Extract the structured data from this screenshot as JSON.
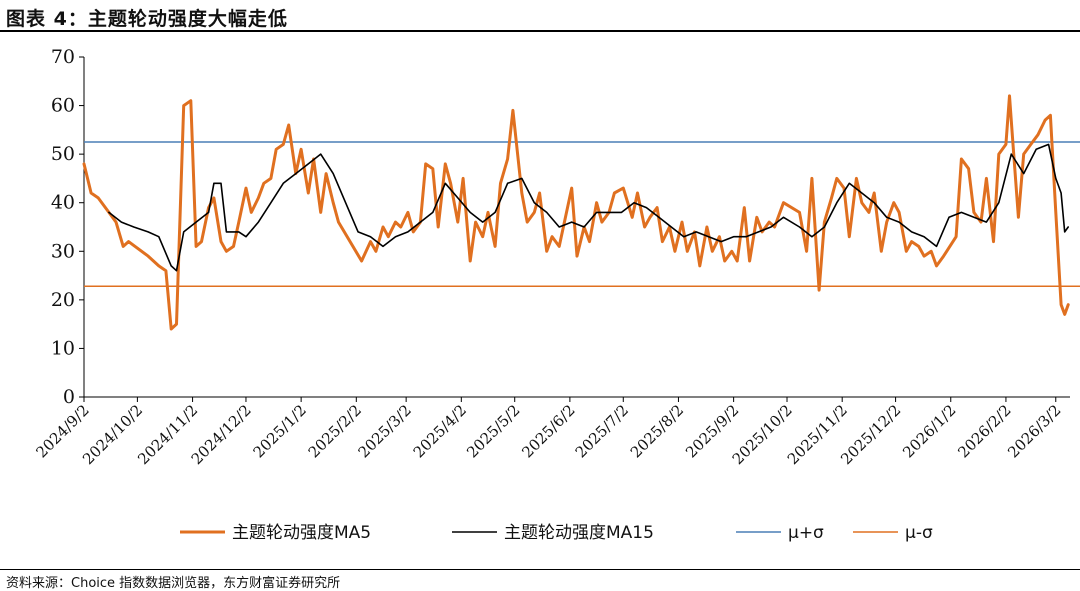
{
  "title": "图表 4：主题轮动强度大幅走低",
  "source": "资料来源：Choice 指数数据浏览器，东方财富证券研究所",
  "chart_data": {
    "type": "line",
    "title": "图表 4：主题轮动强度大幅走低",
    "xlabel": "",
    "ylabel": "",
    "ylim": [
      0,
      70
    ],
    "yticks": [
      0,
      10,
      20,
      30,
      40,
      50,
      60,
      70
    ],
    "x_tick_labels": [
      "2024/9/2",
      "2024/10/2",
      "2024/11/2",
      "2024/12/2",
      "2025/1/2",
      "2025/2/2",
      "2025/3/2",
      "2025/4/2",
      "2025/5/2",
      "2025/6/2",
      "2025/7/2",
      "2025/8/2",
      "2025/9/2",
      "2025/10/2",
      "2025/11/2",
      "2025/12/2",
      "2026/1/2",
      "2026/2/2",
      "2026/3/2"
    ],
    "x_range": [
      "2024/9/2",
      "2026/3/10"
    ],
    "grid": false,
    "legend_position": "bottom",
    "series": [
      {
        "name": "主题轮动强度MA5",
        "color": "#E07020",
        "points": [
          [
            "2024/9/2",
            48
          ],
          [
            "2024/9/6",
            42
          ],
          [
            "2024/9/10",
            41
          ],
          [
            "2024/9/16",
            38
          ],
          [
            "2024/9/20",
            36
          ],
          [
            "2024/9/24",
            31
          ],
          [
            "2024/9/27",
            32
          ],
          [
            "2024/10/8",
            29
          ],
          [
            "2024/10/14",
            27
          ],
          [
            "2024/10/18",
            26
          ],
          [
            "2024/10/21",
            14
          ],
          [
            "2024/10/24",
            15
          ],
          [
            "2024/10/28",
            60
          ],
          [
            "2024/11/1",
            61
          ],
          [
            "2024/11/4",
            31
          ],
          [
            "2024/11/7",
            32
          ],
          [
            "2024/11/11",
            39
          ],
          [
            "2024/11/14",
            41
          ],
          [
            "2024/11/18",
            32
          ],
          [
            "2024/11/21",
            30
          ],
          [
            "2024/11/25",
            31
          ],
          [
            "2024/11/28",
            36
          ],
          [
            "2024/12/2",
            43
          ],
          [
            "2024/12/5",
            38
          ],
          [
            "2024/12/9",
            41
          ],
          [
            "2024/12/12",
            44
          ],
          [
            "2024/12/16",
            45
          ],
          [
            "2024/12/19",
            51
          ],
          [
            "2024/12/23",
            52
          ],
          [
            "2024/12/26",
            56
          ],
          [
            "2024/12/30",
            46
          ],
          [
            "2025/1/2",
            51
          ],
          [
            "2025/1/6",
            42
          ],
          [
            "2025/1/9",
            49
          ],
          [
            "2025/1/13",
            38
          ],
          [
            "2025/1/16",
            46
          ],
          [
            "2025/1/20",
            40
          ],
          [
            "2025/1/23",
            36
          ],
          [
            "2025/2/5",
            28
          ],
          [
            "2025/2/10",
            32
          ],
          [
            "2025/2/13",
            30
          ],
          [
            "2025/2/17",
            35
          ],
          [
            "2025/2/20",
            33
          ],
          [
            "2025/2/24",
            36
          ],
          [
            "2025/2/27",
            35
          ],
          [
            "2025/3/3",
            38
          ],
          [
            "2025/3/6",
            34
          ],
          [
            "2025/3/10",
            36
          ],
          [
            "2025/3/13",
            48
          ],
          [
            "2025/3/17",
            47
          ],
          [
            "2025/3/20",
            35
          ],
          [
            "2025/3/24",
            48
          ],
          [
            "2025/3/27",
            44
          ],
          [
            "2025/3/31",
            36
          ],
          [
            "2025/4/3",
            45
          ],
          [
            "2025/4/7",
            28
          ],
          [
            "2025/4/10",
            36
          ],
          [
            "2025/4/14",
            33
          ],
          [
            "2025/4/17",
            38
          ],
          [
            "2025/4/21",
            31
          ],
          [
            "2025/4/24",
            44
          ],
          [
            "2025/4/28",
            49
          ],
          [
            "2025/5/1",
            59
          ],
          [
            "2025/5/6",
            42
          ],
          [
            "2025/5/9",
            36
          ],
          [
            "2025/5/13",
            38
          ],
          [
            "2025/5/16",
            42
          ],
          [
            "2025/5/20",
            30
          ],
          [
            "2025/5/23",
            33
          ],
          [
            "2025/5/27",
            31
          ],
          [
            "2025/6/3",
            43
          ],
          [
            "2025/6/6",
            29
          ],
          [
            "2025/6/10",
            35
          ],
          [
            "2025/6/13",
            32
          ],
          [
            "2025/6/17",
            40
          ],
          [
            "2025/6/20",
            36
          ],
          [
            "2025/6/24",
            38
          ],
          [
            "2025/6/27",
            42
          ],
          [
            "2025/7/2",
            43
          ],
          [
            "2025/7/7",
            37
          ],
          [
            "2025/7/10",
            42
          ],
          [
            "2025/7/14",
            35
          ],
          [
            "2025/7/17",
            37
          ],
          [
            "2025/7/21",
            39
          ],
          [
            "2025/7/24",
            32
          ],
          [
            "2025/7/28",
            35
          ],
          [
            "2025/7/31",
            30
          ],
          [
            "2025/8/4",
            36
          ],
          [
            "2025/8/7",
            30
          ],
          [
            "2025/8/11",
            34
          ],
          [
            "2025/8/14",
            27
          ],
          [
            "2025/8/18",
            35
          ],
          [
            "2025/8/21",
            30
          ],
          [
            "2025/8/25",
            33
          ],
          [
            "2025/8/28",
            28
          ],
          [
            "2025/9/1",
            30
          ],
          [
            "2025/9/4",
            28
          ],
          [
            "2025/9/8",
            39
          ],
          [
            "2025/9/11",
            28
          ],
          [
            "2025/9/15",
            37
          ],
          [
            "2025/9/18",
            34
          ],
          [
            "2025/9/22",
            36
          ],
          [
            "2025/9/25",
            35
          ],
          [
            "2025/9/30",
            40
          ],
          [
            "2025/10/9",
            38
          ],
          [
            "2025/10/13",
            30
          ],
          [
            "2025/10/16",
            45
          ],
          [
            "2025/10/20",
            22
          ],
          [
            "2025/10/23",
            36
          ],
          [
            "2025/10/27",
            41
          ],
          [
            "2025/10/30",
            45
          ],
          [
            "2025/11/3",
            43
          ],
          [
            "2025/11/6",
            33
          ],
          [
            "2025/11/10",
            45
          ],
          [
            "2025/11/13",
            40
          ],
          [
            "2025/11/17",
            38
          ],
          [
            "2025/11/20",
            42
          ],
          [
            "2025/11/24",
            30
          ],
          [
            "2025/11/27",
            36
          ],
          [
            "2025/12/1",
            40
          ],
          [
            "2025/12/4",
            38
          ],
          [
            "2025/12/8",
            30
          ],
          [
            "2025/12/11",
            32
          ],
          [
            "2025/12/15",
            31
          ],
          [
            "2025/12/18",
            29
          ],
          [
            "2025/12/22",
            30
          ],
          [
            "2025/12/25",
            27
          ],
          [
            "2025/12/29",
            29
          ],
          [
            "2026/1/5",
            33
          ],
          [
            "2026/1/8",
            49
          ],
          [
            "2026/1/12",
            47
          ],
          [
            "2026/1/15",
            38
          ],
          [
            "2026/1/19",
            36
          ],
          [
            "2026/1/22",
            45
          ],
          [
            "2026/1/26",
            32
          ],
          [
            "2026/1/29",
            50
          ],
          [
            "2026/2/2",
            52
          ],
          [
            "2026/2/4",
            62
          ],
          [
            "2026/2/6",
            52
          ],
          [
            "2026/2/9",
            37
          ],
          [
            "2026/2/12",
            50
          ],
          [
            "2026/2/16",
            52
          ],
          [
            "2026/2/20",
            54
          ],
          [
            "2026/2/24",
            57
          ],
          [
            "2026/2/27",
            58
          ],
          [
            "2026/3/2",
            38
          ],
          [
            "2026/3/5",
            19
          ],
          [
            "2026/3/7",
            17
          ],
          [
            "2026/3/9",
            19
          ]
        ]
      },
      {
        "name": "主题轮动强度MA15",
        "color": "#000000",
        "points": [
          [
            "2024/9/16",
            38
          ],
          [
            "2024/9/23",
            36
          ],
          [
            "2024/9/30",
            35
          ],
          [
            "2024/10/8",
            34
          ],
          [
            "2024/10/14",
            33
          ],
          [
            "2024/10/21",
            27
          ],
          [
            "2024/10/24",
            26
          ],
          [
            "2024/10/28",
            34
          ],
          [
            "2024/11/4",
            36
          ],
          [
            "2024/11/11",
            38
          ],
          [
            "2024/11/14",
            44
          ],
          [
            "2024/11/18",
            44
          ],
          [
            "2024/11/21",
            34
          ],
          [
            "2024/11/28",
            34
          ],
          [
            "2024/12/2",
            33
          ],
          [
            "2024/12/9",
            36
          ],
          [
            "2024/12/16",
            40
          ],
          [
            "2024/12/23",
            44
          ],
          [
            "2024/12/30",
            46
          ],
          [
            "2025/1/6",
            48
          ],
          [
            "2025/1/13",
            50
          ],
          [
            "2025/1/20",
            46
          ],
          [
            "2025/1/27",
            40
          ],
          [
            "2025/2/3",
            34
          ],
          [
            "2025/2/10",
            33
          ],
          [
            "2025/2/17",
            31
          ],
          [
            "2025/2/24",
            33
          ],
          [
            "2025/3/3",
            34
          ],
          [
            "2025/3/10",
            36
          ],
          [
            "2025/3/17",
            38
          ],
          [
            "2025/3/24",
            44
          ],
          [
            "2025/3/31",
            41
          ],
          [
            "2025/4/7",
            38
          ],
          [
            "2025/4/14",
            36
          ],
          [
            "2025/4/21",
            38
          ],
          [
            "2025/4/28",
            44
          ],
          [
            "2025/5/6",
            45
          ],
          [
            "2025/5/13",
            40
          ],
          [
            "2025/5/20",
            38
          ],
          [
            "2025/5/27",
            35
          ],
          [
            "2025/6/3",
            36
          ],
          [
            "2025/6/10",
            35
          ],
          [
            "2025/6/17",
            38
          ],
          [
            "2025/6/24",
            38
          ],
          [
            "2025/7/1",
            38
          ],
          [
            "2025/7/8",
            40
          ],
          [
            "2025/7/15",
            39
          ],
          [
            "2025/7/22",
            37
          ],
          [
            "2025/7/29",
            35
          ],
          [
            "2025/8/5",
            33
          ],
          [
            "2025/8/12",
            34
          ],
          [
            "2025/8/19",
            33
          ],
          [
            "2025/8/26",
            32
          ],
          [
            "2025/9/2",
            33
          ],
          [
            "2025/9/9",
            33
          ],
          [
            "2025/9/16",
            34
          ],
          [
            "2025/9/23",
            35
          ],
          [
            "2025/9/30",
            37
          ],
          [
            "2025/10/9",
            35
          ],
          [
            "2025/10/16",
            33
          ],
          [
            "2025/10/23",
            35
          ],
          [
            "2025/10/30",
            40
          ],
          [
            "2025/11/6",
            44
          ],
          [
            "2025/11/13",
            42
          ],
          [
            "2025/11/20",
            40
          ],
          [
            "2025/11/27",
            37
          ],
          [
            "2025/12/4",
            36
          ],
          [
            "2025/12/11",
            34
          ],
          [
            "2025/12/18",
            33
          ],
          [
            "2025/12/25",
            31
          ],
          [
            "2026/1/1",
            37
          ],
          [
            "2026/1/8",
            38
          ],
          [
            "2026/1/15",
            37
          ],
          [
            "2026/1/22",
            36
          ],
          [
            "2026/1/29",
            40
          ],
          [
            "2026/2/5",
            50
          ],
          [
            "2026/2/12",
            46
          ],
          [
            "2026/2/19",
            51
          ],
          [
            "2026/2/26",
            52
          ],
          [
            "2026/3/2",
            45
          ],
          [
            "2026/3/5",
            42
          ],
          [
            "2026/3/7",
            34
          ],
          [
            "2026/3/9",
            35
          ]
        ]
      }
    ],
    "reference_lines": [
      {
        "name": "μ+σ",
        "value": 52.5,
        "color": "#4A7FB5"
      },
      {
        "name": "μ-σ",
        "value": 22.8,
        "color": "#E07020"
      }
    ]
  }
}
